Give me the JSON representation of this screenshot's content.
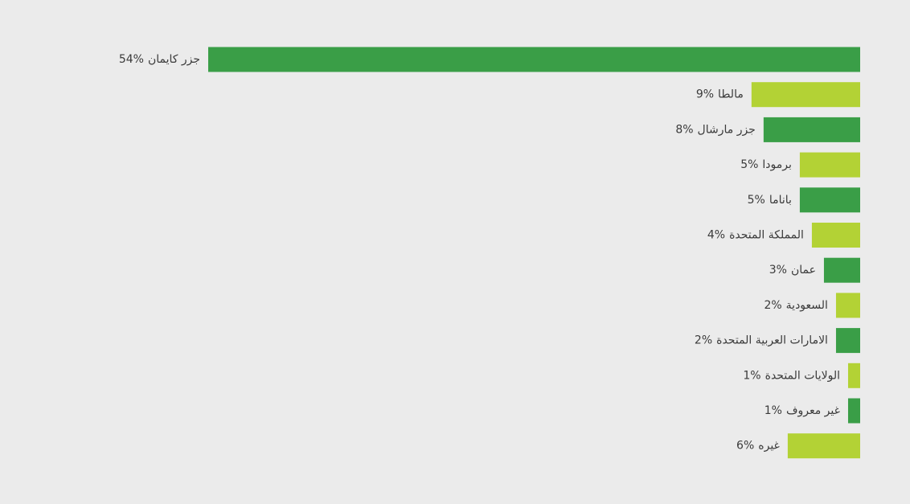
{
  "chart_data": {
    "type": "bar",
    "orientation": "horizontal",
    "categories": [
      "جزر كايمان",
      "مالطا",
      "جزر مارشال",
      "برمودا",
      "باناما",
      "المملكة المتحدة",
      "عمان",
      "السعودية",
      "الامارات العربية المتحدة",
      "الولايات المتحدة",
      "غير معروف",
      "غيره"
    ],
    "values": [
      54,
      9,
      8,
      5,
      5,
      4,
      3,
      2,
      2,
      1,
      1,
      6
    ],
    "value_labels": [
      "54%",
      "9%",
      "8%",
      "5%",
      "5%",
      "4%",
      "3%",
      "2%",
      "2%",
      "1%",
      "1%",
      "6%"
    ],
    "colors": [
      "#3a9e47",
      "#b3d235",
      "#3a9e47",
      "#b3d235",
      "#3a9e47",
      "#b3d235",
      "#3a9e47",
      "#b3d235",
      "#3a9e47",
      "#b3d235",
      "#3a9e47",
      "#b3d235"
    ]
  }
}
